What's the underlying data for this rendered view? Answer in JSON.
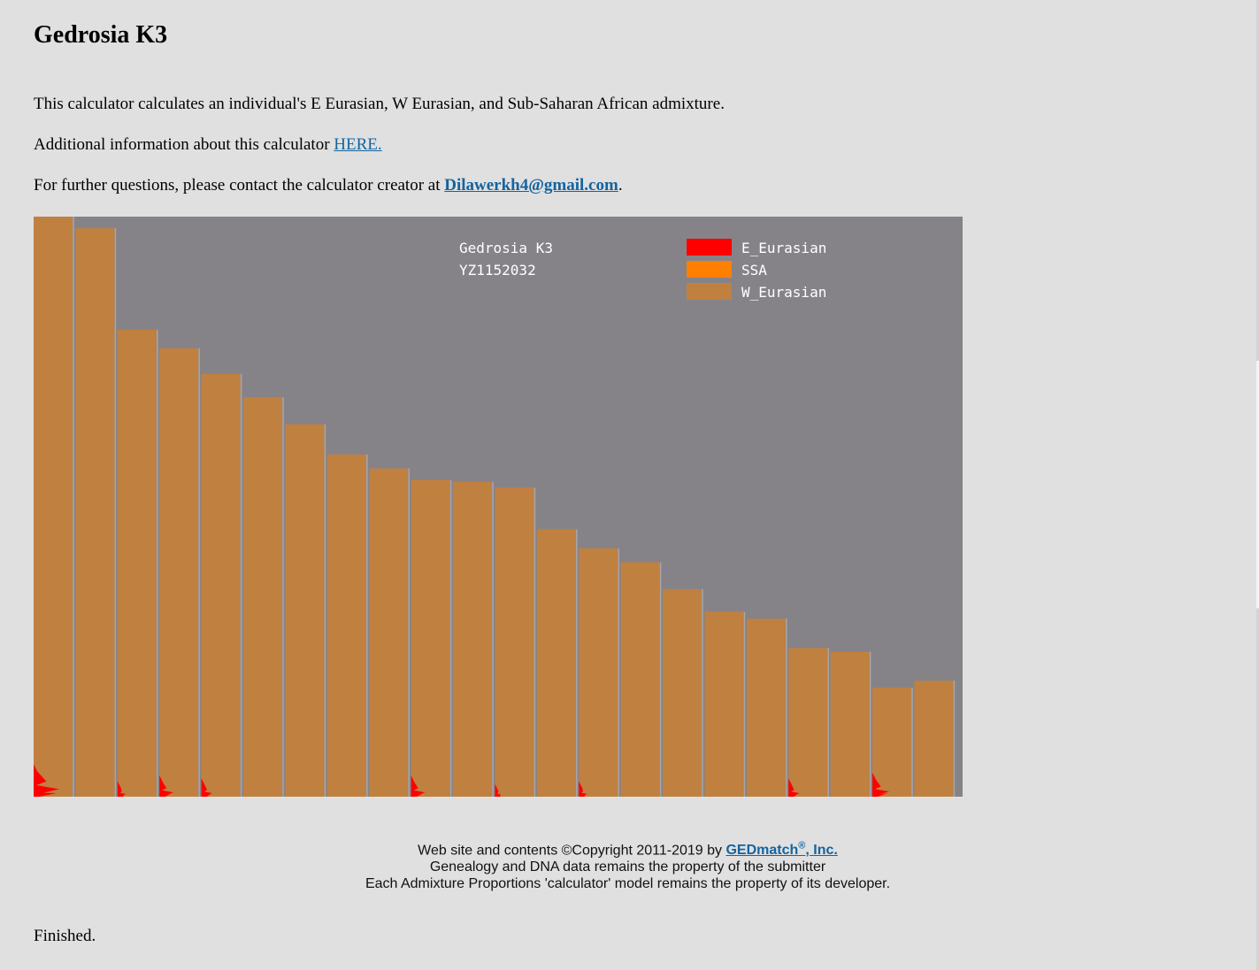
{
  "page": {
    "title": "Gedrosia K3",
    "intro": "This calculator calculates an individual's E Eurasian, W Eurasian, and Sub-Saharan African admixture.",
    "info_prefix": "Additional information about this calculator ",
    "info_link": "HERE.",
    "contact_prefix": "For further questions, please contact the calculator creator at ",
    "contact_email": "Dilawerkh4@gmail.com",
    "contact_suffix": ".",
    "status": "Finished."
  },
  "footer": {
    "copyright_prefix": "Web site and contents ©Copyright 2011-2019 by ",
    "company_link": "GEDmatch",
    "registered_mark": "®",
    "company_suffix": ", Inc.",
    "line2": "Genealogy and DNA data remains the property of the submitter",
    "line3": "Each Admixture Proportions 'calculator' model remains the property of its developer."
  },
  "chart_data": {
    "type": "bar",
    "title": "Gedrosia K3",
    "subtitle": "YZ1152032",
    "legend_position": "top-right",
    "series": [
      {
        "name": "E_Eurasian",
        "color": "#ff0000"
      },
      {
        "name": "SSA",
        "color": "#ff8000"
      },
      {
        "name": "W_Eurasian",
        "color": "#c08040"
      }
    ],
    "values": [
      100,
      98,
      80.5,
      77.3,
      72.9,
      68.9,
      64.2,
      59,
      56.6,
      54.6,
      54.3,
      53.3,
      46.1,
      42.8,
      40.4,
      35.8,
      31.9,
      30.7,
      25.6,
      25,
      18.8,
      20
    ],
    "ylim": [
      0,
      100
    ],
    "e_eurasian_spikes": [
      9,
      0,
      3,
      5,
      4,
      0,
      0,
      0,
      0,
      5,
      0,
      2,
      0,
      3,
      0,
      0,
      0,
      0,
      4,
      0,
      6,
      0
    ],
    "background_color": "#858388"
  }
}
